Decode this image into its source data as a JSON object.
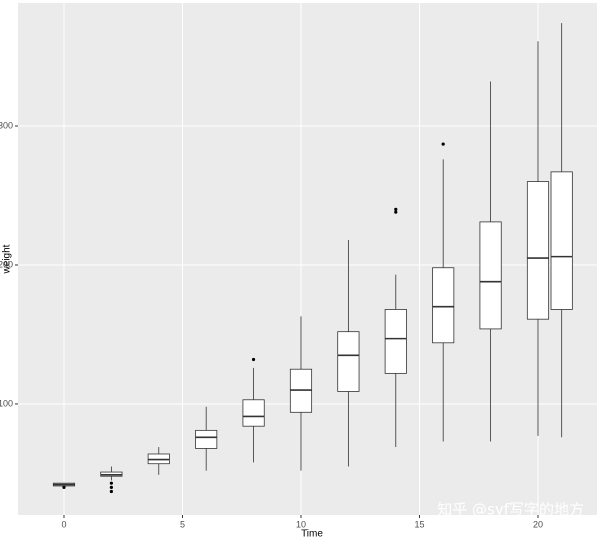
{
  "chart_data": {
    "type": "boxplot",
    "x_label": "Time",
    "y_label": "weight",
    "xlim": [
      -1.94,
      22.49
    ],
    "ylim": [
      20.1,
      388.5
    ],
    "xticks": [
      0,
      5,
      10,
      15,
      20
    ],
    "yticks": [
      100,
      200,
      300
    ],
    "grid": true,
    "panel_color": "#ebebeb",
    "box_color": "#ffffff",
    "line_color": "#333333",
    "boxes": [
      {
        "x": 0,
        "whisker_low": 39,
        "q1": 41,
        "median": 42,
        "q3": 43,
        "whisker_high": 43,
        "outliers": [
          40
        ]
      },
      {
        "x": 2,
        "whisker_low": 45,
        "q1": 48,
        "median": 49,
        "q3": 51,
        "whisker_high": 55,
        "outliers": [
          43,
          40,
          37
        ]
      },
      {
        "x": 4,
        "whisker_low": 49,
        "q1": 57,
        "median": 60,
        "q3": 64,
        "whisker_high": 69,
        "outliers": []
      },
      {
        "x": 6,
        "whisker_low": 52,
        "q1": 68,
        "median": 76,
        "q3": 81,
        "whisker_high": 98,
        "outliers": []
      },
      {
        "x": 8,
        "whisker_low": 58,
        "q1": 84,
        "median": 91,
        "q3": 103,
        "whisker_high": 126,
        "outliers": [
          132
        ]
      },
      {
        "x": 10,
        "whisker_low": 52,
        "q1": 94,
        "median": 110,
        "q3": 125,
        "whisker_high": 163,
        "outliers": []
      },
      {
        "x": 12,
        "whisker_low": 55,
        "q1": 109,
        "median": 135,
        "q3": 152,
        "whisker_high": 218,
        "outliers": []
      },
      {
        "x": 14,
        "whisker_low": 69,
        "q1": 122,
        "median": 147,
        "q3": 168,
        "whisker_high": 193,
        "outliers": [
          240,
          238
        ]
      },
      {
        "x": 16,
        "whisker_low": 73,
        "q1": 144,
        "median": 170,
        "q3": 198,
        "whisker_high": 276,
        "outliers": [
          287
        ]
      },
      {
        "x": 18,
        "whisker_low": 73,
        "q1": 154,
        "median": 188,
        "q3": 231,
        "whisker_high": 332,
        "outliers": []
      },
      {
        "x": 20,
        "whisker_low": 77,
        "q1": 161,
        "median": 205,
        "q3": 260,
        "whisker_high": 361,
        "outliers": []
      },
      {
        "x": 21,
        "whisker_low": 76,
        "q1": 168,
        "median": 206,
        "q3": 267,
        "whisker_high": 374,
        "outliers": []
      }
    ],
    "watermark": "知乎 @syf写字的地方"
  }
}
